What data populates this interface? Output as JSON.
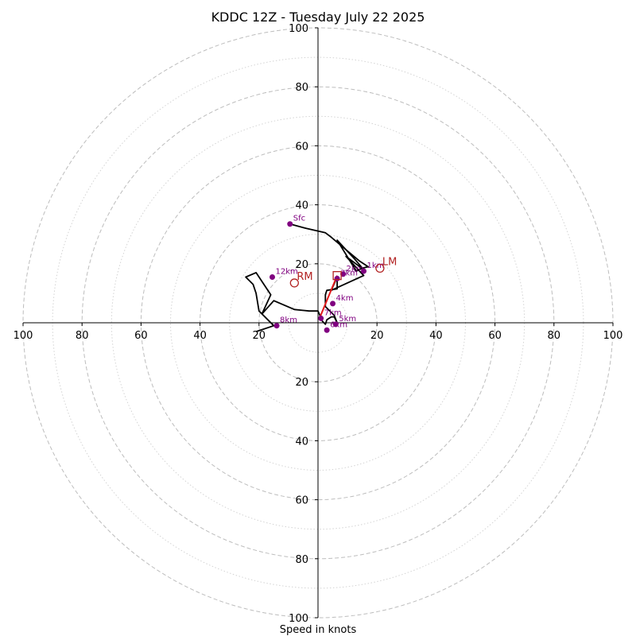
{
  "chart_data": {
    "type": "hodograph",
    "title": "KDDC 12Z - Tuesday July 22 2025",
    "xlabel": "Speed in knots",
    "range": [
      -100,
      100
    ],
    "ring_major": [
      20,
      40,
      60,
      80,
      100
    ],
    "ring_minor": [
      10,
      30,
      50,
      70,
      90
    ],
    "x_tick_labels": [
      "100",
      "80",
      "60",
      "40",
      "20",
      "20",
      "40",
      "60",
      "80",
      "100"
    ],
    "y_tick_labels": [
      "100",
      "80",
      "60",
      "40",
      "20",
      "20",
      "40",
      "60",
      "80",
      "100"
    ],
    "x_tick_values": [
      -100,
      -80,
      -60,
      -40,
      -20,
      20,
      40,
      60,
      80,
      100
    ],
    "y_tick_values": [
      100,
      80,
      60,
      40,
      20,
      -20,
      -40,
      -60,
      -80,
      -100
    ],
    "hodograph_trace": {
      "u": [
        -9.5,
        -4,
        2.5,
        4.5,
        8,
        11,
        14,
        17,
        15,
        13,
        6.5,
        12.5,
        15.5,
        9.5,
        15.5,
        4.5,
        6.5,
        6.5,
        3,
        2.5,
        2.5,
        5.5,
        6.5,
        5.5,
        4.5,
        3,
        2.5,
        1.5,
        0,
        -3,
        -8,
        -15,
        -19,
        -16,
        -21,
        -24.5,
        -22,
        -21,
        -20,
        -15,
        -21
      ],
      "v": [
        33.5,
        32,
        30.5,
        29,
        26,
        23.5,
        21,
        19,
        18.5,
        17.5,
        28,
        21.5,
        18,
        22.5,
        16,
        11,
        15.5,
        11.5,
        11,
        9.5,
        5.5,
        2.5,
        0,
        2,
        2,
        1,
        -0.5,
        0.5,
        4,
        4,
        4.5,
        7.5,
        3,
        9.5,
        17,
        15.5,
        13,
        10,
        4,
        -1,
        -3
      ]
    },
    "height_markers": [
      {
        "label": "Sfc",
        "u": -9.5,
        "v": 33.5
      },
      {
        "label": "1km",
        "u": 15.5,
        "v": 17.5
      },
      {
        "label": "2km",
        "u": 8.5,
        "v": 16.5
      },
      {
        "label": "3km",
        "u": 6.5,
        "v": 15
      },
      {
        "label": "4km",
        "u": 5,
        "v": 6.5
      },
      {
        "label": "5km",
        "u": 6,
        "v": -0.5
      },
      {
        "label": "6km",
        "u": 3,
        "v": -2.5
      },
      {
        "label": "7km",
        "u": 1,
        "v": 1.5
      },
      {
        "label": "8km",
        "u": -14,
        "v": -1
      },
      {
        "label": "12km",
        "u": -15.5,
        "v": 15.5
      }
    ],
    "storm_motions": [
      {
        "label": "RM",
        "u": -8,
        "v": 13.5
      },
      {
        "label": "LM",
        "u": 21,
        "v": 18.5
      }
    ],
    "mean_wind": {
      "u": 6.5,
      "v": 16
    },
    "shear_vector": {
      "from_u": 0.5,
      "from_v": 1.5,
      "to_u": 6.5,
      "to_v": 16
    },
    "colors": {
      "trace": "#000000",
      "markers": "#800080",
      "storm_motion": "#b22222",
      "rings": "#bdbdbd",
      "axes": "#000000"
    }
  }
}
